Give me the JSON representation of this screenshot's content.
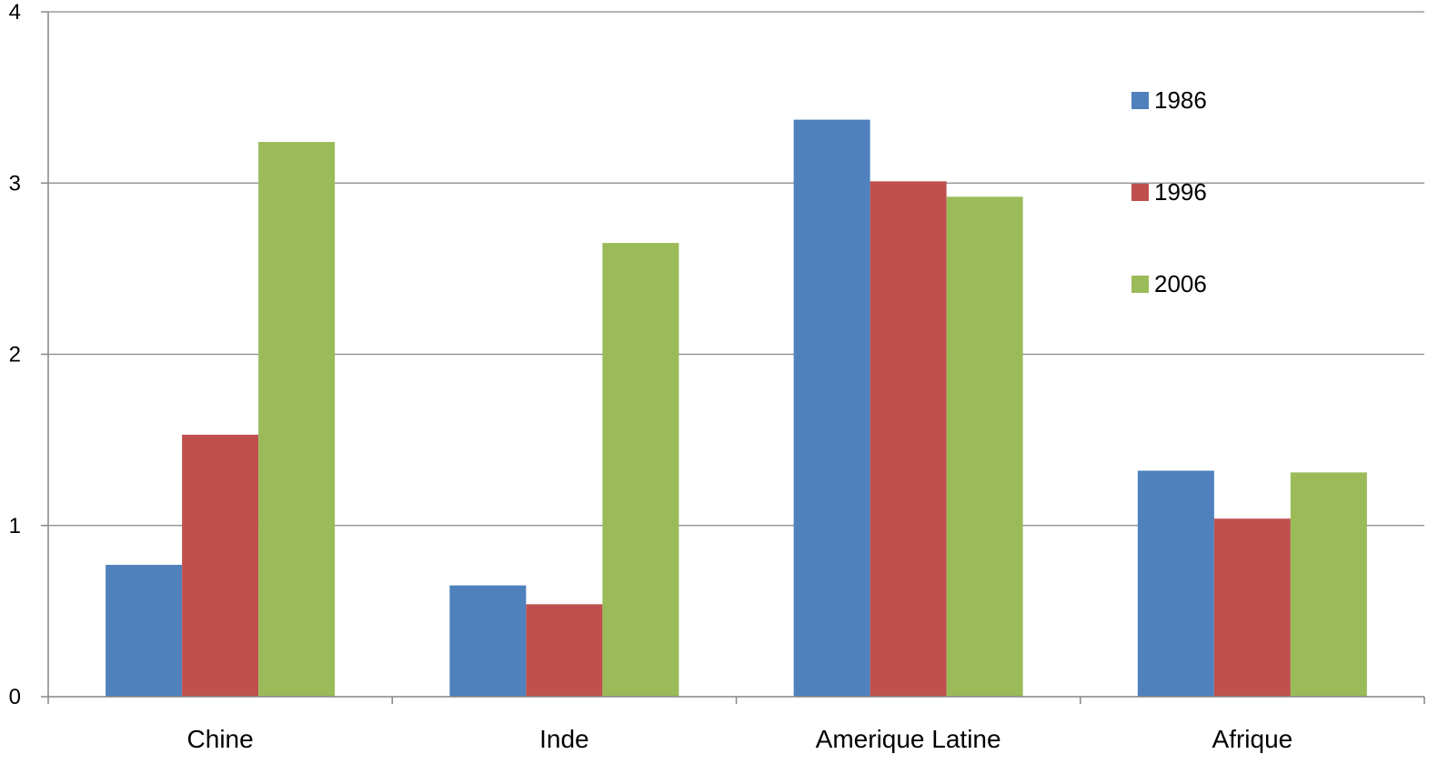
{
  "chart_data": {
    "type": "bar",
    "title": "",
    "xlabel": "",
    "ylabel": "",
    "categories": [
      "Chine",
      "Inde",
      "Amerique Latine",
      "Afrique"
    ],
    "series": [
      {
        "name": "1986",
        "color": "#4f81bd",
        "values": [
          0.77,
          0.65,
          3.37,
          1.32
        ]
      },
      {
        "name": "1996",
        "color": "#c0504d",
        "values": [
          1.53,
          0.54,
          3.01,
          1.04
        ]
      },
      {
        "name": "2006",
        "color": "#9bbb59",
        "values": [
          3.24,
          2.65,
          2.92,
          1.31
        ]
      }
    ],
    "ylim": [
      0,
      4
    ],
    "yticks": [
      "0",
      "1",
      "2",
      "3",
      "4"
    ],
    "grid": true,
    "legend_position": "right"
  }
}
